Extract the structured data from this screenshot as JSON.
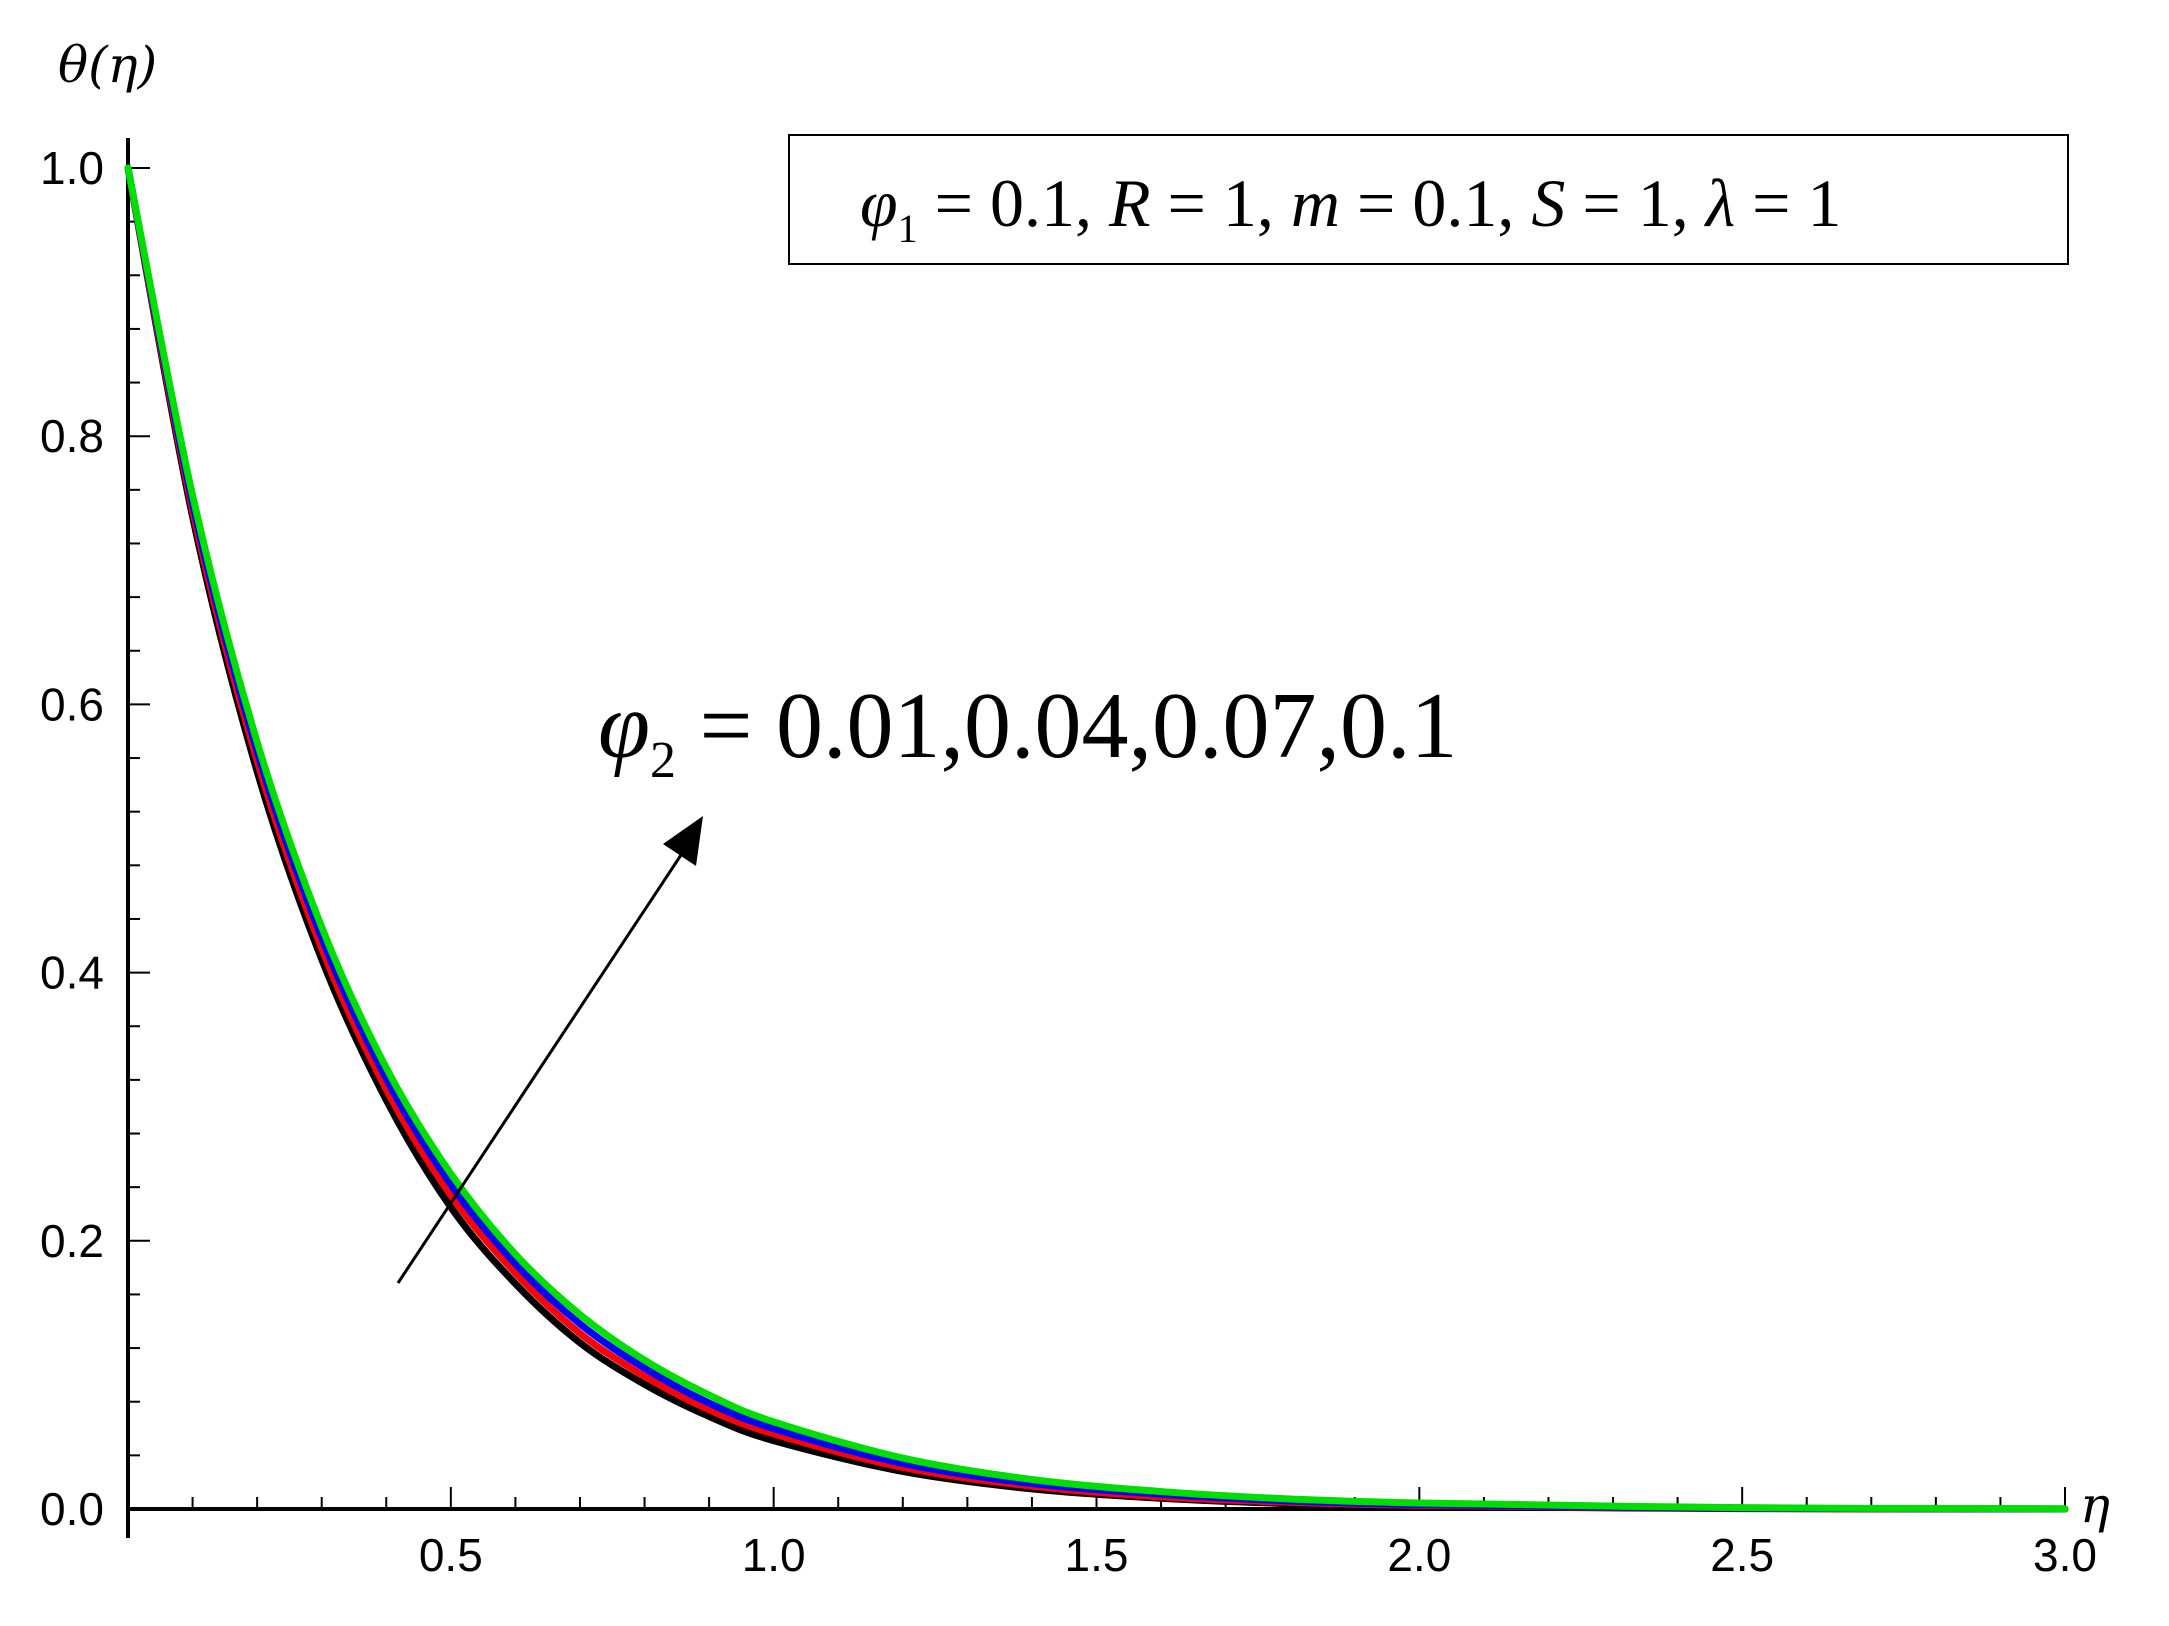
{
  "chart_data": {
    "type": "line",
    "ylabel": "θ(η)",
    "xlabel": "η",
    "xlim": [
      0,
      3.0
    ],
    "ylim": [
      0,
      1.0
    ],
    "x_ticks": [
      "0.5",
      "1.0",
      "1.5",
      "2.0",
      "2.5",
      "3.0"
    ],
    "y_ticks": [
      "0.0",
      "0.2",
      "0.4",
      "0.6",
      "0.8",
      "1.0"
    ],
    "legend": {
      "position": "top-right",
      "phi": "φ",
      "phi_sub": "1",
      "eq1": " = 0.1, ",
      "R": "R",
      "eq2": " = 1, ",
      "m": "m",
      "eq3": " = 0.1, ",
      "S": "S",
      "eq4": " = 1, ",
      "lambda": "λ",
      "eq5": " = 1"
    },
    "annotation": {
      "phi": "φ",
      "phi_sub": "2",
      "text": " = 0.01,0.04,0.07,0.1"
    },
    "grid": false,
    "x": [
      0,
      0.1,
      0.2,
      0.3,
      0.4,
      0.5,
      0.6,
      0.7,
      0.8,
      0.9,
      1.0,
      1.2,
      1.4,
      1.6,
      1.8,
      2.0,
      2.5,
      3.0
    ],
    "series": [
      {
        "color": "#000000",
        "values": [
          1.0,
          0.74,
          0.55,
          0.41,
          0.305,
          0.225,
          0.168,
          0.124,
          0.093,
          0.069,
          0.051,
          0.028,
          0.015,
          0.008,
          0.004,
          0.002,
          0.0003,
          0.0
        ]
      },
      {
        "color": "#ff0000",
        "values": [
          1.0,
          0.745,
          0.558,
          0.418,
          0.313,
          0.234,
          0.176,
          0.131,
          0.099,
          0.074,
          0.056,
          0.031,
          0.017,
          0.009,
          0.005,
          0.0027,
          0.0004,
          0.0
        ]
      },
      {
        "color": "#0000ff",
        "values": [
          1.0,
          0.75,
          0.565,
          0.426,
          0.321,
          0.242,
          0.183,
          0.138,
          0.105,
          0.079,
          0.06,
          0.034,
          0.019,
          0.011,
          0.006,
          0.0033,
          0.0006,
          0.0001
        ]
      },
      {
        "color": "#00dd00",
        "values": [
          1.0,
          0.756,
          0.572,
          0.434,
          0.329,
          0.25,
          0.19,
          0.145,
          0.111,
          0.085,
          0.065,
          0.038,
          0.022,
          0.013,
          0.0075,
          0.0045,
          0.001,
          0.0002
        ]
      }
    ]
  }
}
